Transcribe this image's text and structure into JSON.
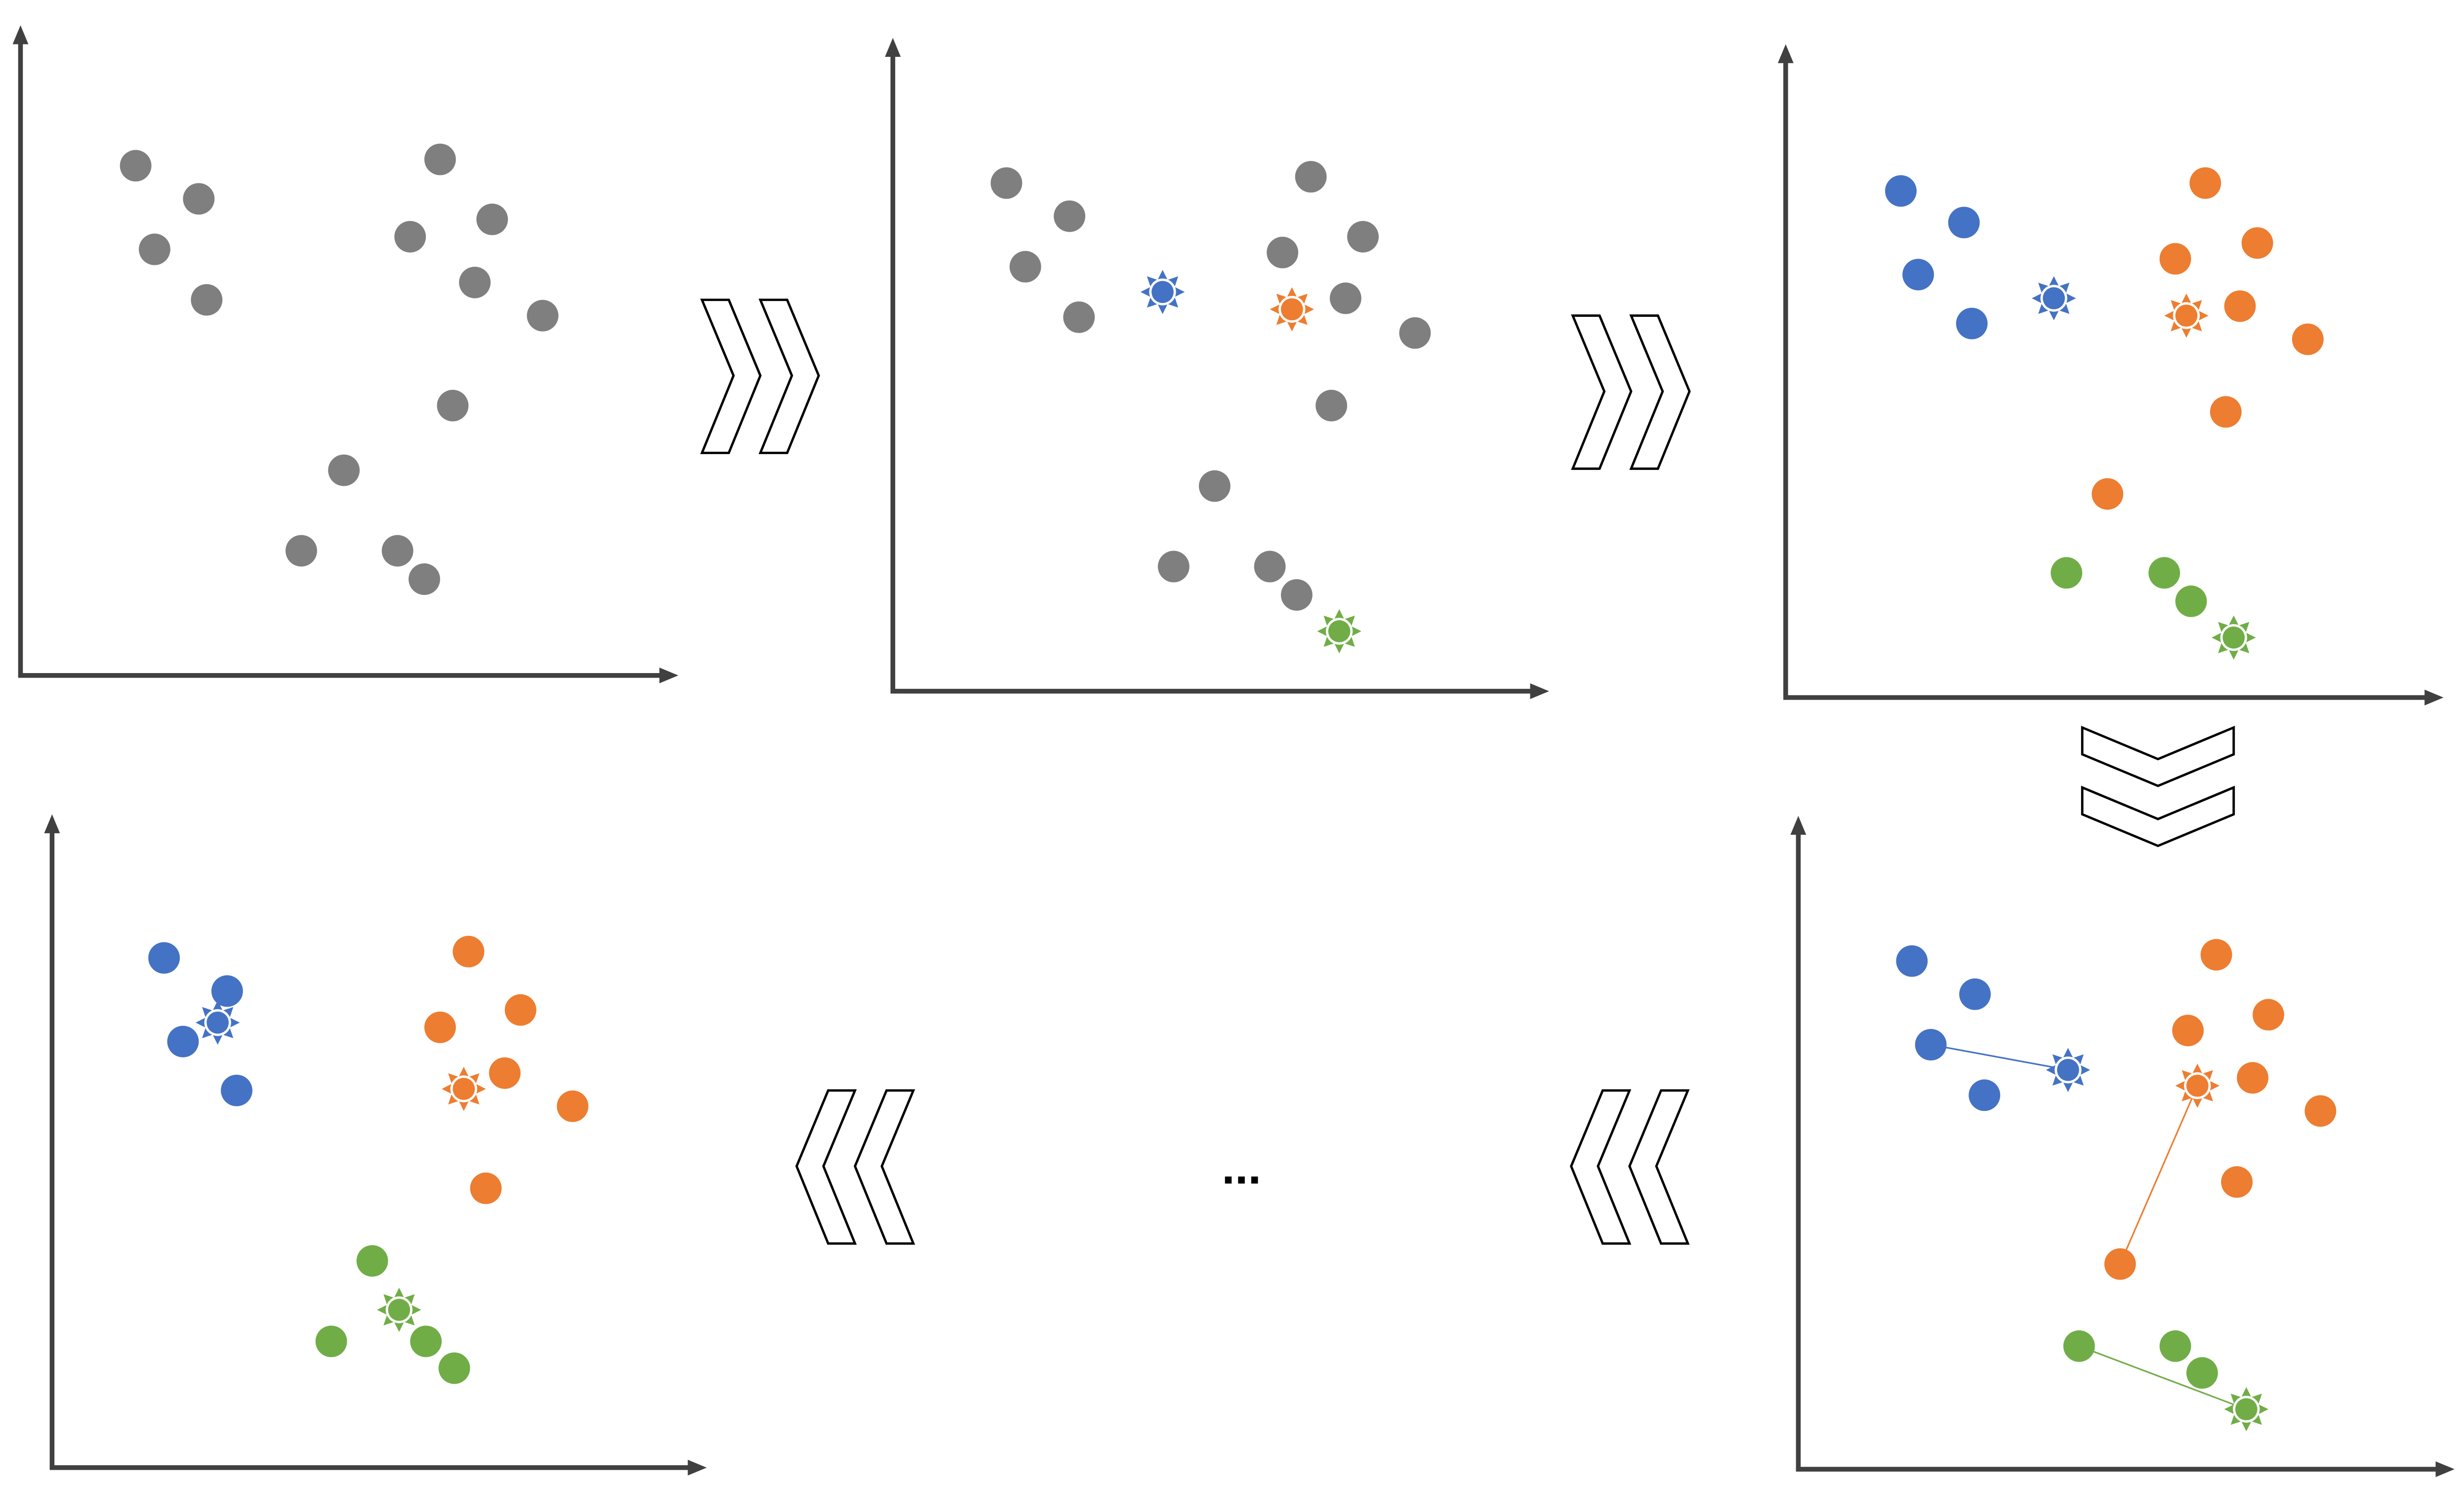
{
  "ellipsis": "..."
}
